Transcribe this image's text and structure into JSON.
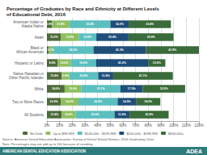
{
  "chart_data": {
    "type": "bar",
    "orientation": "horizontal",
    "stacked": true,
    "data_labels": true,
    "grid": true,
    "legend": "bottom",
    "title": "Percentage of Graduates by Race and Ethnicity at Different Levels\nof Educational Debt, 2016",
    "categories": [
      "American Indian or\nAlaska Native",
      "Asian",
      "Black or\nAfrican American",
      "Hispanic or Latino",
      "Native Hawaiian or\nOther Pacific Islander",
      "White",
      "Two or More Races",
      "All Students"
    ],
    "series": [
      {
        "name": "No Debt",
        "color": "#4e6b3a",
        "values": [
          3.9,
          11.2,
          1.5,
          8.6,
          11.8,
          14.0,
          10.9,
          11.8
        ],
        "value_labels": [
          "3.9%",
          "11.2%",
          null,
          "8.6%",
          "11.8%",
          "14.0%",
          "10.9%",
          "11.8%"
        ]
      },
      {
        "name": "Up to $99,999",
        "color": "#8fbe5e",
        "values": [
          13.9,
          13.9,
          3.1,
          10.2,
          5.9,
          13.0,
          14.0,
          10.8
        ],
        "value_labels": [
          "13.9%",
          "13.9%",
          "3.1%",
          "10.2%",
          "5.9%",
          "13.0%",
          "14.0%",
          "10.8%"
        ]
      },
      {
        "name": "$100,000 - $199,999",
        "color": "#5bbfbf",
        "values": [
          32.4,
          13.9,
          32.2,
          19.9,
          22.8,
          31.1,
          30.9,
          30.8
        ],
        "value_labels": [
          "32.4%",
          "13.9%",
          "32.2%",
          "19.9%",
          "22.8%",
          "31.1%",
          "30.9%",
          "30.8%"
        ]
      },
      {
        "name": "$200,000 - $299,999",
        "color": "#1f4e79",
        "values": [
          14.3,
          25.4,
          41.3,
          41.2,
          11.8,
          17.5,
          14.5,
          11.8
        ],
        "value_labels": [
          "14.3%",
          "25.4%",
          "41.3%",
          "41.2%",
          "11.8%",
          "17.5%",
          "14.5%",
          "11.8%"
        ]
      },
      {
        "name": "$300,000+",
        "color": "#3a6b3a",
        "values": [
          33.4,
          35.6,
          41.9,
          13.6,
          47.1,
          33.5,
          19.2,
          30.9
        ],
        "value_labels": [
          "33.4%",
          "35.6%",
          "41.9%",
          "13.6%",
          "47.1%",
          "33.5%",
          "19.2%",
          "30.9%"
        ]
      }
    ],
    "xlim": [
      0,
      120
    ],
    "xticks": [
      {
        "value": 0,
        "label": "0%"
      },
      {
        "value": 10,
        "label": "10%"
      },
      {
        "value": 20,
        "label": "20%"
      },
      {
        "value": 30,
        "label": "30%"
      },
      {
        "value": 40,
        "label": "40%"
      },
      {
        "value": 50,
        "label": "50%"
      },
      {
        "value": 60,
        "label": "60%"
      },
      {
        "value": 70,
        "label": "70%"
      },
      {
        "value": 80,
        "label": "80%"
      },
      {
        "value": 90,
        "label": "90%"
      },
      {
        "value": 100,
        "label": "100%"
      },
      {
        "value": 110,
        "label": "110%"
      },
      {
        "value": 120,
        "label": "120%"
      }
    ],
    "annotations": [
      "Source: American Dental Education Association, Survey of Dental School Seniors, 2016 Graduating Class",
      "Note: Percentages may not add up to 100 because of rounding",
      "AMERICAN DENTAL EDUCATION ASSOCIATION",
      "ADEA"
    ]
  }
}
